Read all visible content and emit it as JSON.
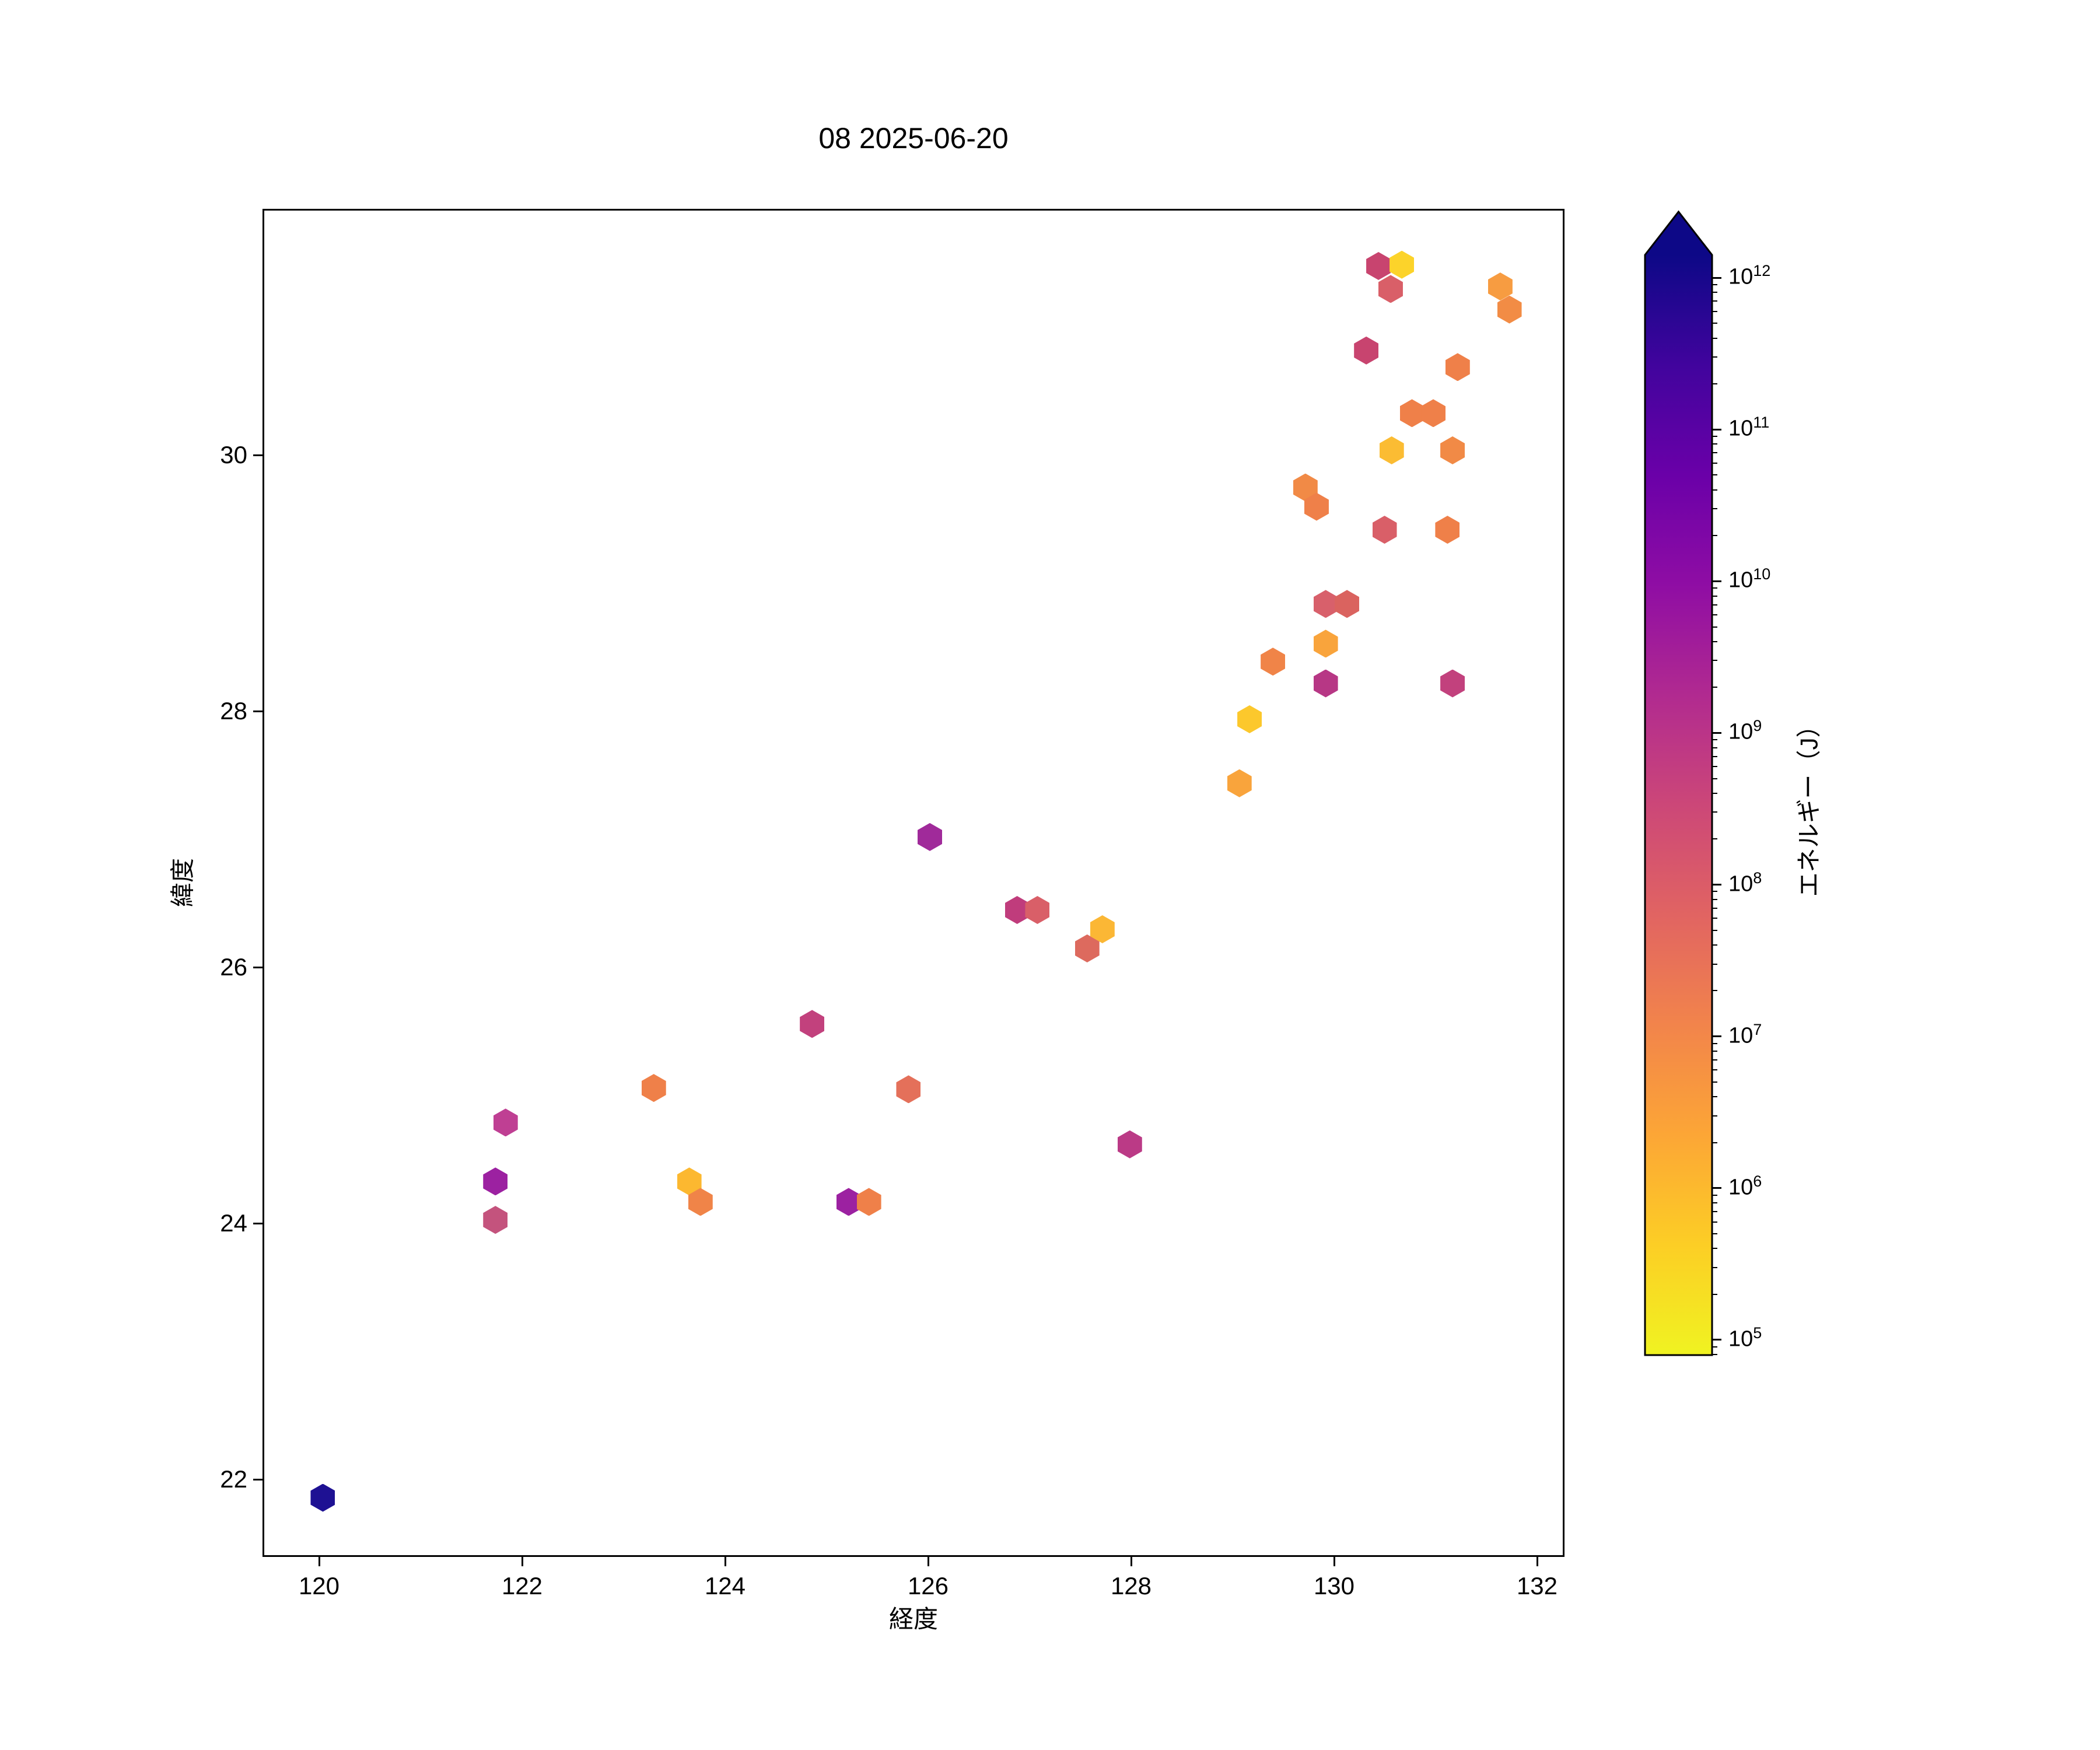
{
  "title": "08 2025-06-20",
  "chart_data": {
    "type": "scatter",
    "marker": "hexagon",
    "title": "08 2025-06-20",
    "xlabel": "経度",
    "ylabel": "緯度",
    "xlim": [
      119.44,
      132.27
    ],
    "ylim": [
      21.39,
      31.92
    ],
    "xticks": [
      120,
      122,
      124,
      126,
      128,
      130,
      132
    ],
    "yticks": [
      22,
      24,
      26,
      28,
      30
    ],
    "grid": false,
    "colormap": "plasma_r",
    "color_scale": "log",
    "colorbar_label": "エネルギー（J）",
    "points": [
      {
        "lon": 120.02,
        "lat": 21.87,
        "color": "#1e1193",
        "energy_j": 600000000000.0
      },
      {
        "lon": 121.82,
        "lat": 24.8,
        "color": "#bf3f93",
        "energy_j": 2500000000.0
      },
      {
        "lon": 121.72,
        "lat": 24.34,
        "color": "#9c21a1",
        "energy_j": 12000000000.0
      },
      {
        "lon": 121.72,
        "lat": 24.04,
        "color": "#c4537d",
        "energy_j": 300000000.0
      },
      {
        "lon": 123.28,
        "lat": 25.07,
        "color": "#ef8049",
        "energy_j": 12000000.0
      },
      {
        "lon": 123.63,
        "lat": 24.34,
        "color": "#fcb830",
        "energy_j": 900000.0
      },
      {
        "lon": 123.74,
        "lat": 24.18,
        "color": "#f08448",
        "energy_j": 11000000.0
      },
      {
        "lon": 124.84,
        "lat": 25.57,
        "color": "#c2417d",
        "energy_j": 500000000.0
      },
      {
        "lon": 125.2,
        "lat": 24.18,
        "color": "#9c21a1",
        "energy_j": 11000000000.0
      },
      {
        "lon": 125.4,
        "lat": 24.18,
        "color": "#ef8049",
        "energy_j": 13000000.0
      },
      {
        "lon": 125.79,
        "lat": 25.06,
        "color": "#e4705a",
        "energy_j": 30000000.0
      },
      {
        "lon": 126.0,
        "lat": 27.03,
        "color": "#a02a9a",
        "energy_j": 9000000000.0
      },
      {
        "lon": 126.86,
        "lat": 26.46,
        "color": "#c03c7c",
        "energy_j": 600000000.0
      },
      {
        "lon": 127.06,
        "lat": 26.46,
        "color": "#d95f68",
        "energy_j": 60000000.0
      },
      {
        "lon": 127.55,
        "lat": 26.16,
        "color": "#dd6a5e",
        "energy_j": 50000000.0
      },
      {
        "lon": 127.7,
        "lat": 26.31,
        "color": "#fbb735",
        "energy_j": 1000000.0
      },
      {
        "lon": 127.97,
        "lat": 24.63,
        "color": "#bb3a86",
        "energy_j": 800000000.0
      },
      {
        "lon": 129.15,
        "lat": 27.95,
        "color": "#fcc82c",
        "energy_j": 500000.0
      },
      {
        "lon": 129.05,
        "lat": 27.45,
        "color": "#f9a43c",
        "energy_j": 2500000.0
      },
      {
        "lon": 130.42,
        "lat": 31.49,
        "color": "#c8446f",
        "energy_j": 200000000.0
      },
      {
        "lon": 130.54,
        "lat": 31.31,
        "color": "#d95f68",
        "energy_j": 60000000.0
      },
      {
        "lon": 130.65,
        "lat": 31.5,
        "color": "#fcd32a",
        "energy_j": 300000.0
      },
      {
        "lon": 131.62,
        "lat": 31.33,
        "color": "#f79c41",
        "energy_j": 3000000.0
      },
      {
        "lon": 131.71,
        "lat": 31.15,
        "color": "#f28c45",
        "energy_j": 7000000.0
      },
      {
        "lon": 130.3,
        "lat": 30.83,
        "color": "#c8446f",
        "energy_j": 200000000.0
      },
      {
        "lon": 131.2,
        "lat": 30.7,
        "color": "#ef8049",
        "energy_j": 12000000.0
      },
      {
        "lon": 130.75,
        "lat": 30.34,
        "color": "#ef8049",
        "energy_j": 12000000.0
      },
      {
        "lon": 130.96,
        "lat": 30.34,
        "color": "#ef8049",
        "energy_j": 13000000.0
      },
      {
        "lon": 130.55,
        "lat": 30.05,
        "color": "#fbbc33",
        "energy_j": 1000000.0
      },
      {
        "lon": 131.15,
        "lat": 30.05,
        "color": "#f18a46",
        "energy_j": 8000000.0
      },
      {
        "lon": 129.7,
        "lat": 29.76,
        "color": "#f18a46",
        "energy_j": 8000000.0
      },
      {
        "lon": 129.81,
        "lat": 29.61,
        "color": "#ef8049",
        "energy_j": 12000000.0
      },
      {
        "lon": 130.48,
        "lat": 29.43,
        "color": "#d95f68",
        "energy_j": 60000000.0
      },
      {
        "lon": 131.1,
        "lat": 29.43,
        "color": "#ef8049",
        "energy_j": 12000000.0
      },
      {
        "lon": 129.9,
        "lat": 28.85,
        "color": "#d8606b",
        "energy_j": 55000000.0
      },
      {
        "lon": 130.11,
        "lat": 28.85,
        "color": "#da635f",
        "energy_j": 50000000.0
      },
      {
        "lon": 129.9,
        "lat": 28.54,
        "color": "#f9a43c",
        "energy_j": 2500000.0
      },
      {
        "lon": 129.38,
        "lat": 28.4,
        "color": "#f08448",
        "energy_j": 11000000.0
      },
      {
        "lon": 129.9,
        "lat": 28.23,
        "color": "#b73785",
        "energy_j": 900000000.0
      },
      {
        "lon": 131.15,
        "lat": 28.23,
        "color": "#c2417d",
        "energy_j": 500000000.0
      }
    ]
  },
  "colorbar": {
    "label": "エネルギー（J）",
    "tick_exponents": [
      5,
      6,
      7,
      8,
      9,
      10,
      11,
      12
    ],
    "log_min_exp": 4.9,
    "log_max_exp": 12.15,
    "extend": "max",
    "arrow_color": "#0d0887",
    "gradient_stops": [
      "#f0f321",
      "#fcce25",
      "#fca636",
      "#f2844b",
      "#e16462",
      "#cc4778",
      "#b12a90",
      "#8f0da4",
      "#6a00a8",
      "#41049d",
      "#0d0887"
    ]
  }
}
